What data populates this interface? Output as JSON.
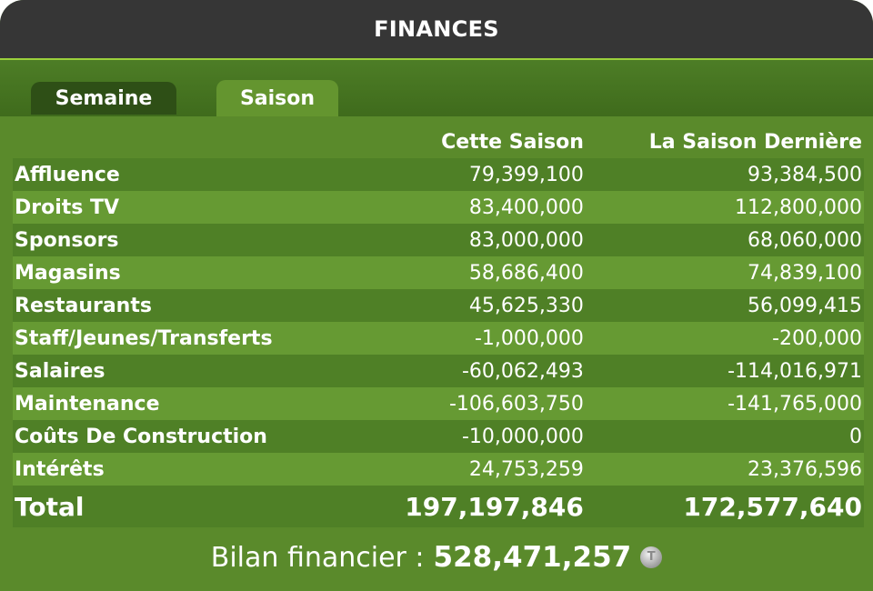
{
  "window": {
    "title": "FINANCES"
  },
  "tabs": [
    {
      "label": "Semaine",
      "active": false
    },
    {
      "label": "Saison",
      "active": true
    }
  ],
  "table": {
    "columns": [
      "",
      "Cette Saison",
      "La Saison Dernière"
    ],
    "rows": [
      {
        "label": "Affluence",
        "this_season": "79,399,100",
        "last_season": "93,384,500"
      },
      {
        "label": "Droits TV",
        "this_season": "83,400,000",
        "last_season": "112,800,000"
      },
      {
        "label": "Sponsors",
        "this_season": "83,000,000",
        "last_season": "68,060,000"
      },
      {
        "label": "Magasins",
        "this_season": "58,686,400",
        "last_season": "74,839,100"
      },
      {
        "label": "Restaurants",
        "this_season": "45,625,330",
        "last_season": "56,099,415"
      },
      {
        "label": "Staff/Jeunes/Transferts",
        "this_season": "-1,000,000",
        "last_season": "-200,000"
      },
      {
        "label": "Salaires",
        "this_season": "-60,062,493",
        "last_season": "-114,016,971"
      },
      {
        "label": "Maintenance",
        "this_season": "-106,603,750",
        "last_season": "-141,765,000"
      },
      {
        "label": "Coûts De Construction",
        "this_season": "-10,000,000",
        "last_season": "0"
      },
      {
        "label": "Intérêts",
        "this_season": "24,753,259",
        "last_season": "23,376,596"
      }
    ],
    "total": {
      "label": "Total",
      "this_season": "197,197,846",
      "last_season": "172,577,640"
    }
  },
  "balance": {
    "label": "Bilan financier :",
    "value": "528,471,257",
    "icon": "coin-icon"
  },
  "colors": {
    "title_bar": "#363636",
    "accent_line": "#9bd03c",
    "panel_green": "#5a8a2b",
    "row_dark": "#4f8026",
    "row_light": "#669a33",
    "tab_inactive": "#2e4f16",
    "tab_active": "#64952f"
  }
}
